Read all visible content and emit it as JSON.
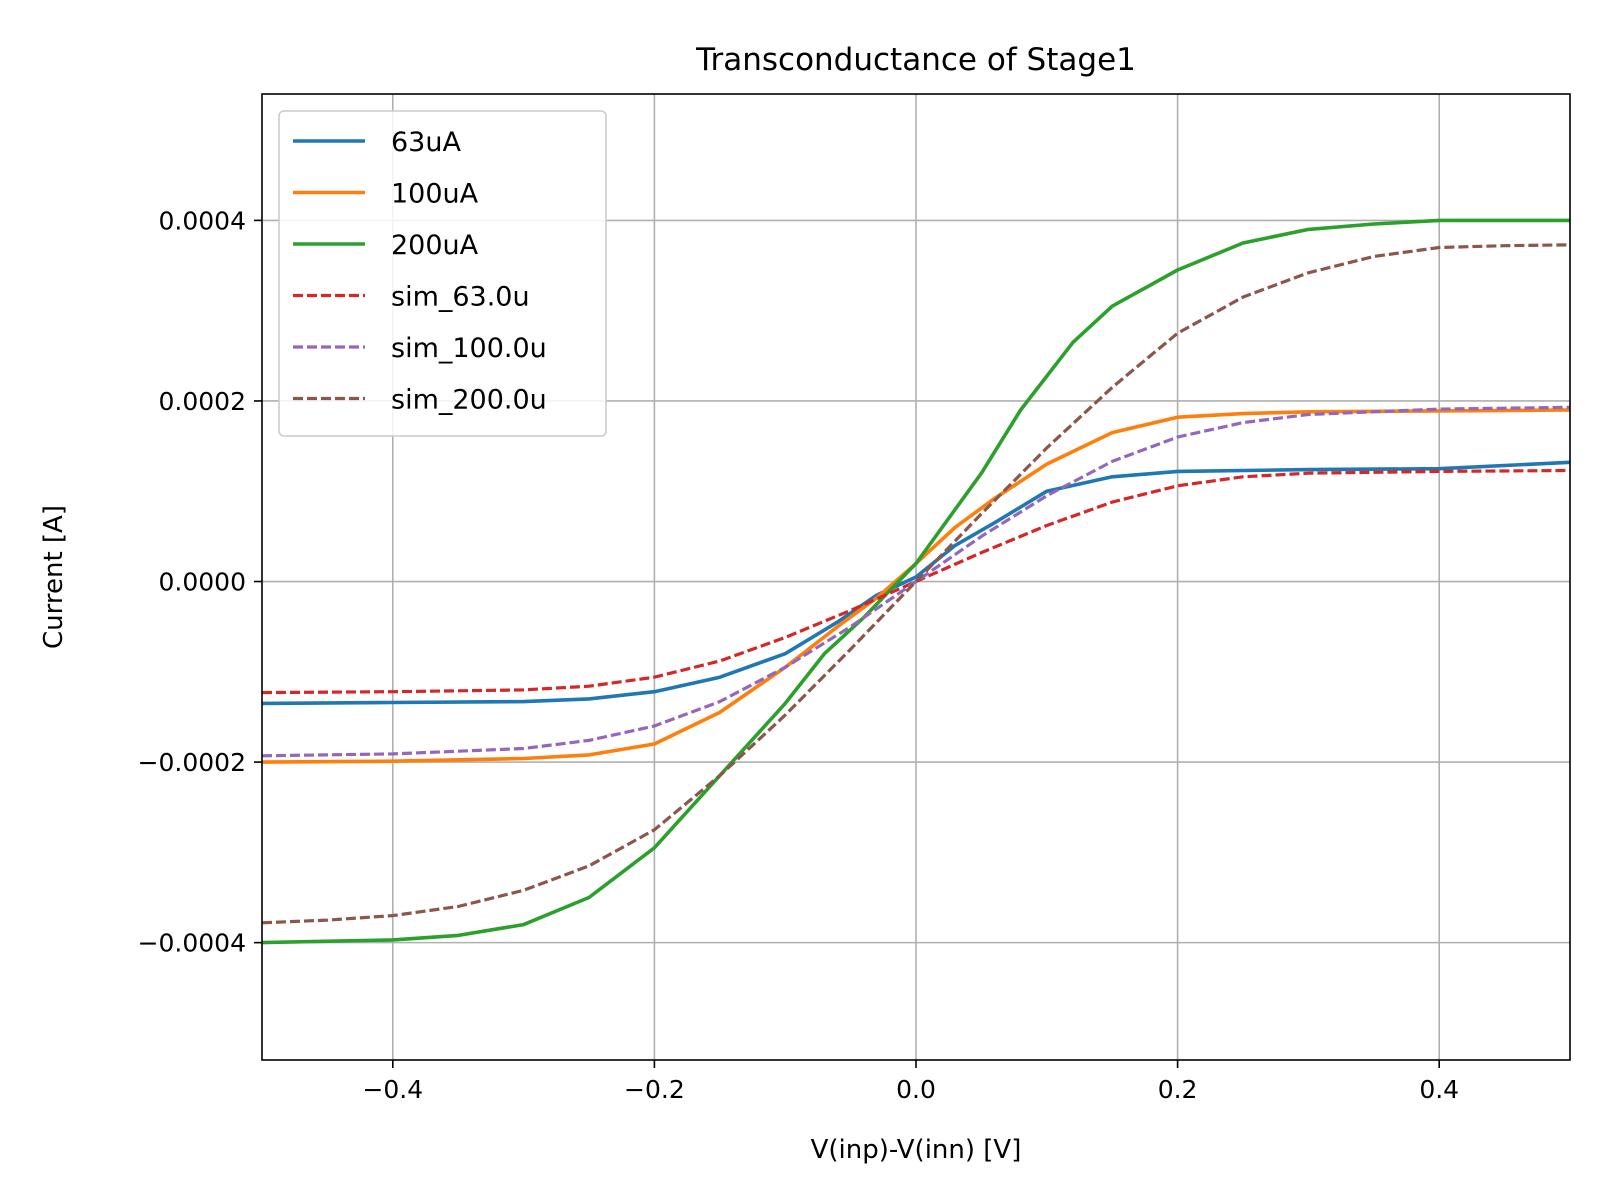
{
  "chart_data": {
    "type": "line",
    "title": "Transconductance of Stage1",
    "xlabel": "V(inp)-V(inn) [V]",
    "ylabel": "Current [A]",
    "xlim": [
      -0.5,
      0.5
    ],
    "ylim": [
      -0.00053,
      0.00054
    ],
    "xticks": [
      -0.4,
      -0.2,
      0.0,
      0.2,
      0.4
    ],
    "xtick_labels": [
      "−0.4",
      "−0.2",
      "0.0",
      "0.2",
      "0.4"
    ],
    "yticks": [
      -0.0004,
      -0.0002,
      0.0,
      0.0002,
      0.0004
    ],
    "ytick_labels": [
      "−0.0004",
      "−0.0002",
      "0.0000",
      "0.0002",
      "0.0004"
    ],
    "grid": true,
    "legend_position": "upper-left",
    "series": [
      {
        "name": "63uA",
        "color": "#1f77b4",
        "dash": "solid",
        "x": [
          -0.5,
          -0.4,
          -0.3,
          -0.25,
          -0.2,
          -0.15,
          -0.1,
          -0.06,
          -0.03,
          0.0,
          0.03,
          0.06,
          0.1,
          0.15,
          0.2,
          0.3,
          0.4,
          0.5
        ],
        "y": [
          -0.000135,
          -0.000134,
          -0.000133,
          -0.00013,
          -0.000122,
          -0.000106,
          -8e-05,
          -4.5e-05,
          -1.5e-05,
          5e-06,
          4e-05,
          6.5e-05,
          0.0001,
          0.000116,
          0.000122,
          0.000124,
          0.000125,
          0.000132
        ]
      },
      {
        "name": "100uA",
        "color": "#ff7f0e",
        "dash": "solid",
        "x": [
          -0.5,
          -0.4,
          -0.3,
          -0.25,
          -0.2,
          -0.15,
          -0.1,
          -0.06,
          -0.03,
          0.0,
          0.03,
          0.06,
          0.1,
          0.15,
          0.2,
          0.25,
          0.3,
          0.4,
          0.5
        ],
        "y": [
          -0.0002,
          -0.000199,
          -0.000196,
          -0.000192,
          -0.00018,
          -0.000145,
          -9.5e-05,
          -5e-05,
          -1.8e-05,
          2e-05,
          6e-05,
          9.2e-05,
          0.00013,
          0.000165,
          0.000182,
          0.000186,
          0.000188,
          0.000189,
          0.00019
        ]
      },
      {
        "name": "200uA",
        "color": "#2ca02c",
        "dash": "solid",
        "x": [
          -0.5,
          -0.4,
          -0.35,
          -0.3,
          -0.25,
          -0.2,
          -0.15,
          -0.1,
          -0.07,
          -0.04,
          -0.02,
          0.0,
          0.02,
          0.05,
          0.08,
          0.12,
          0.15,
          0.2,
          0.25,
          0.3,
          0.35,
          0.4,
          0.5
        ],
        "y": [
          -0.0004,
          -0.000397,
          -0.000392,
          -0.00038,
          -0.00035,
          -0.000295,
          -0.000215,
          -0.000135,
          -8e-05,
          -4e-05,
          -1e-05,
          2e-05,
          6e-05,
          0.00012,
          0.00019,
          0.000265,
          0.000305,
          0.000345,
          0.000375,
          0.00039,
          0.000396,
          0.0004,
          0.0004
        ]
      },
      {
        "name": "sim_63.0u",
        "color": "#d62728",
        "dash": "dashed",
        "x": [
          -0.5,
          -0.4,
          -0.3,
          -0.25,
          -0.2,
          -0.15,
          -0.1,
          -0.05,
          0.0,
          0.05,
          0.1,
          0.15,
          0.2,
          0.25,
          0.3,
          0.4,
          0.5
        ],
        "y": [
          -0.000123,
          -0.000122,
          -0.00012,
          -0.000116,
          -0.000106,
          -8.8e-05,
          -6.2e-05,
          -3.2e-05,
          0.0,
          3.2e-05,
          6.2e-05,
          8.8e-05,
          0.000106,
          0.000116,
          0.00012,
          0.000122,
          0.000123
        ]
      },
      {
        "name": "sim_100.0u",
        "color": "#9467bd",
        "dash": "dashed",
        "x": [
          -0.5,
          -0.4,
          -0.3,
          -0.25,
          -0.2,
          -0.15,
          -0.1,
          -0.05,
          0.0,
          0.05,
          0.1,
          0.15,
          0.2,
          0.25,
          0.3,
          0.4,
          0.5
        ],
        "y": [
          -0.000193,
          -0.000191,
          -0.000185,
          -0.000176,
          -0.00016,
          -0.000133,
          -9.5e-05,
          -5e-05,
          0.0,
          5e-05,
          9.5e-05,
          0.000133,
          0.00016,
          0.000176,
          0.000185,
          0.000191,
          0.000193
        ]
      },
      {
        "name": "sim_200.0u",
        "color": "#8c564b",
        "dash": "dashed",
        "x": [
          -0.5,
          -0.45,
          -0.4,
          -0.35,
          -0.3,
          -0.25,
          -0.2,
          -0.15,
          -0.1,
          -0.05,
          0.0,
          0.05,
          0.1,
          0.15,
          0.2,
          0.25,
          0.3,
          0.35,
          0.4,
          0.45,
          0.5
        ],
        "y": [
          -0.000378,
          -0.000375,
          -0.00037,
          -0.00036,
          -0.000342,
          -0.000315,
          -0.000275,
          -0.000215,
          -0.000148,
          -7.5e-05,
          0.0,
          7.5e-05,
          0.000148,
          0.000215,
          0.000275,
          0.000315,
          0.000342,
          0.00036,
          0.00037,
          0.000372,
          0.000373
        ]
      }
    ]
  }
}
